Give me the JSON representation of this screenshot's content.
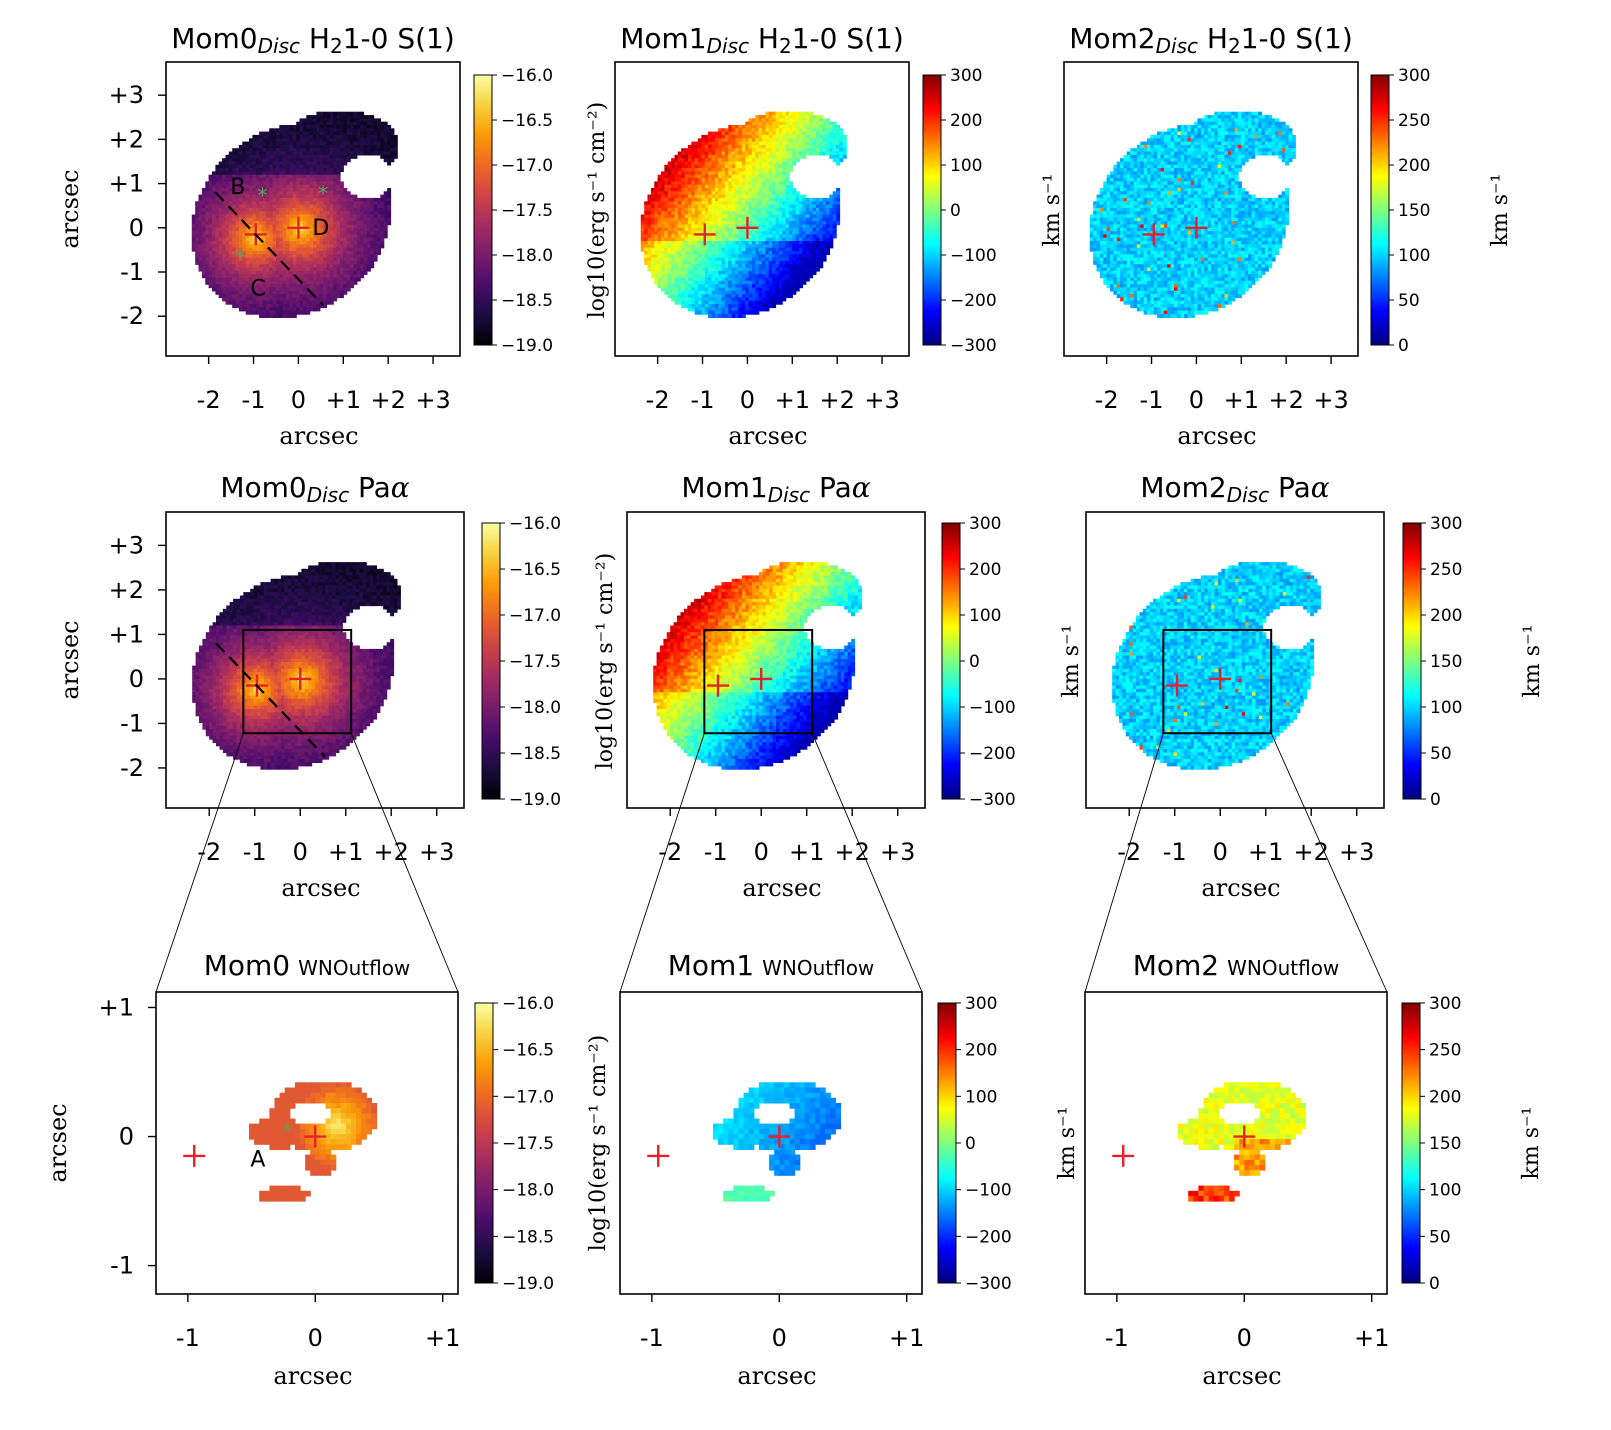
{
  "panels": [
    {
      "id": "r1c1",
      "title_main": "Mom0",
      "title_sub": "Disc",
      "title_tail": " H",
      "title_h2": "2",
      "title_end": "1-0 S(1)",
      "title_font": "sans-serif",
      "map": "mom0",
      "cmap": "inferno",
      "colorbar": {
        "ticks": [
          "−16.0",
          "−16.5",
          "−17.0",
          "−17.5",
          "−18.0",
          "−18.5",
          "−19.0"
        ],
        "label": "log10(erg s⁻¹ cm⁻²)"
      },
      "xticks": [
        "-2",
        "-1",
        "0",
        "+1",
        "+2",
        "+3"
      ],
      "yticks": [
        "+3",
        "+2",
        "+1",
        "0",
        "-1",
        "-2"
      ],
      "xlabel": "arcsec",
      "ylabel": "arcsec",
      "letters": [
        "B",
        "C",
        "D"
      ]
    },
    {
      "id": "r1c2",
      "title_main": "Mom1",
      "title_sub": "Disc",
      "title_tail": " H",
      "title_h2": "2",
      "title_end": "1-0 S(1)",
      "map": "mom1",
      "cmap": "jet",
      "colorbar": {
        "ticks": [
          "300",
          "200",
          "100",
          "0",
          "−100",
          "−200",
          "−300"
        ],
        "label": "km s⁻¹"
      },
      "xticks": [
        "-2",
        "-1",
        "0",
        "+1",
        "+2",
        "+3"
      ],
      "xlabel": "arcsec"
    },
    {
      "id": "r1c3",
      "title_main": "Mom2",
      "title_sub": "Disc",
      "title_tail": " H",
      "title_h2": "2",
      "title_end": "1-0 S(1)",
      "map": "mom2",
      "cmap": "jet",
      "colorbar": {
        "ticks": [
          "300",
          "250",
          "200",
          "150",
          "100",
          "50",
          "0"
        ],
        "label": "km s⁻¹"
      },
      "xticks": [
        "-2",
        "-1",
        "0",
        "+1",
        "+2",
        "+3"
      ],
      "xlabel": "arcsec"
    },
    {
      "id": "r2c1",
      "title_main": "Mom0",
      "title_sub": "Disc",
      "title_tail": " Pa",
      "title_alpha": "α",
      "map": "mom0",
      "cmap": "inferno",
      "colorbar": {
        "ticks": [
          "−16.0",
          "−16.5",
          "−17.0",
          "−17.5",
          "−18.0",
          "−18.5",
          "−19.0"
        ],
        "label": "log10(erg s⁻¹ cm⁻²)"
      },
      "xticks": [
        "-2",
        "-1",
        "0",
        "+1",
        "+2",
        "+3"
      ],
      "yticks": [
        "+3",
        "+2",
        "+1",
        "0",
        "-1",
        "-2"
      ],
      "xlabel": "arcsec",
      "ylabel": "arcsec"
    },
    {
      "id": "r2c2",
      "title_main": "Mom1",
      "title_sub": "Disc",
      "title_tail": " Pa",
      "title_alpha": "α",
      "map": "mom1",
      "cmap": "jet",
      "colorbar": {
        "ticks": [
          "300",
          "200",
          "100",
          "0",
          "−100",
          "−200",
          "−300"
        ],
        "label": "km s⁻¹"
      },
      "xticks": [
        "-2",
        "-1",
        "0",
        "+1",
        "+2",
        "+3"
      ],
      "xlabel": "arcsec"
    },
    {
      "id": "r2c3",
      "title_main": "Mom2",
      "title_sub": "Disc",
      "title_tail": " Pa",
      "title_alpha": "α",
      "map": "mom2",
      "cmap": "jet",
      "colorbar": {
        "ticks": [
          "300",
          "250",
          "200",
          "150",
          "100",
          "50",
          "0"
        ],
        "label": "km s⁻¹"
      },
      "xticks": [
        "-2",
        "-1",
        "0",
        "+1",
        "+2",
        "+3"
      ],
      "xlabel": "arcsec"
    },
    {
      "id": "r3c1",
      "title_main": "Mom0",
      "title_small": "WNOutflow",
      "map": "mom0",
      "cmap": "inferno",
      "colorbar": {
        "ticks": [
          "−16.0",
          "−16.5",
          "−17.0",
          "−17.5",
          "−18.0",
          "−18.5",
          "−19.0"
        ],
        "label": "log10(erg s⁻¹ cm⁻²)"
      },
      "xticks": [
        "-1",
        "0",
        "+1"
      ],
      "yticks": [
        "+1",
        "0",
        "-1"
      ],
      "xlabel": "arcsec",
      "ylabel": "arcsec",
      "letters": [
        "A"
      ]
    },
    {
      "id": "r3c2",
      "title_main": "Mom1",
      "title_small": "WNOutflow",
      "map": "mom1",
      "cmap": "jet",
      "colorbar": {
        "ticks": [
          "300",
          "200",
          "100",
          "0",
          "−100",
          "−200",
          "−300"
        ],
        "label": "km s⁻¹"
      },
      "xticks": [
        "-1",
        "0",
        "+1"
      ],
      "xlabel": "arcsec"
    },
    {
      "id": "r3c3",
      "title_main": "Mom2",
      "title_small": "WNOutflow",
      "map": "mom2",
      "cmap": "jet",
      "colorbar": {
        "ticks": [
          "300",
          "250",
          "200",
          "150",
          "100",
          "50",
          "0"
        ],
        "label": "km s⁻¹"
      },
      "xticks": [
        "-1",
        "0",
        "+1"
      ],
      "xlabel": "arcsec"
    }
  ],
  "colors": {
    "nucleus_marker": "#e8202a",
    "star_marker": "#5aa05a",
    "inferno": [
      "#000004",
      "#1b0c41",
      "#4a0c6b",
      "#781c6d",
      "#a52c60",
      "#cf4446",
      "#ed6925",
      "#fb9b06",
      "#f7d13d",
      "#fcffa4"
    ],
    "jet": [
      "#00007f",
      "#0000ff",
      "#007fff",
      "#00ffff",
      "#7fff7f",
      "#ffff00",
      "#ff7f00",
      "#ff0000",
      "#7f0000"
    ]
  }
}
